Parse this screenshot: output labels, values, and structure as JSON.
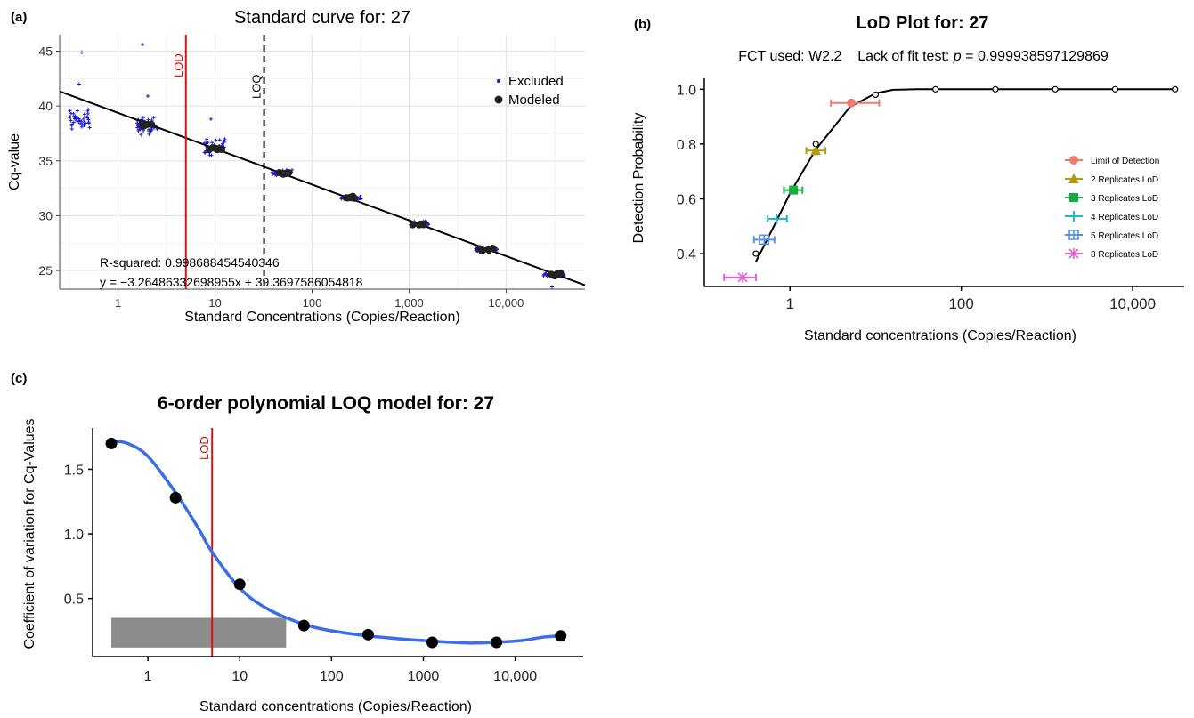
{
  "colors": {
    "excluded": "#1a1ad6",
    "modeled": "#222222",
    "lod_line": "#e01010",
    "fit_line": "#000000",
    "poly_curve": "#3a6ee8",
    "loq_bar": "#8c8c8c",
    "grid": "#e6e6e6"
  },
  "chart_data": [
    {
      "panel": "(a)",
      "type": "scatter",
      "title": "Standard curve for: 27",
      "xlabel": "Standard Concentrations (Copies/Reaction)",
      "ylabel": "Cq-value",
      "x_scale": "log10",
      "xlim": [
        0.25,
        65000
      ],
      "ylim": [
        23.3,
        46.5
      ],
      "x_ticks": [
        1,
        10,
        100,
        1000,
        10000
      ],
      "x_tick_labels": [
        "1",
        "10",
        "100",
        "1,000",
        "10,000"
      ],
      "y_ticks": [
        25,
        30,
        35,
        40,
        45
      ],
      "y_tick_labels": [
        "25",
        "30",
        "35",
        "40",
        "45"
      ],
      "grid": true,
      "legend": {
        "position": "top-right",
        "entries": [
          "Excluded",
          "Modeled"
        ]
      },
      "annotations": {
        "r_squared": "R-squared: 0.998688454540346",
        "equation": "y = −3.26486332698955x + 39.3697586054818"
      },
      "vlines": [
        {
          "label": "LOD",
          "x": 5,
          "style": "solid"
        },
        {
          "label": "LOQ",
          "x": 32,
          "style": "dashed"
        }
      ],
      "fit": {
        "slope": -3.26486332698955,
        "intercept": 39.3697586054818
      },
      "standards": [
        {
          "x": 0.4,
          "excluded_mean": 38.8,
          "excluded_spread": 1.5,
          "modeled": null,
          "outliers": [
            42.0,
            44.9
          ]
        },
        {
          "x": 2,
          "excluded_mean": 38.2,
          "excluded_spread": 1.3,
          "modeled": 38.3,
          "outliers": [
            45.6,
            40.9
          ]
        },
        {
          "x": 10,
          "excluded_mean": 36.2,
          "excluded_spread": 1.1,
          "modeled": 36.1,
          "outliers": [
            38.8
          ]
        },
        {
          "x": 50,
          "excluded_mean": 33.9,
          "excluded_spread": 0.5,
          "modeled": 33.9,
          "outliers": []
        },
        {
          "x": 250,
          "excluded_mean": 31.6,
          "excluded_spread": 0.3,
          "modeled": 31.6,
          "outliers": []
        },
        {
          "x": 1250,
          "excluded_mean": 29.3,
          "excluded_spread": 0.25,
          "modeled": 29.2,
          "outliers": []
        },
        {
          "x": 6250,
          "excluded_mean": 26.9,
          "excluded_spread": 0.25,
          "modeled": 26.9,
          "outliers": []
        },
        {
          "x": 31250,
          "excluded_mean": 24.6,
          "excluded_spread": 0.3,
          "modeled": 24.6,
          "outliers": [
            23.5
          ]
        }
      ]
    },
    {
      "panel": "(b)",
      "type": "line",
      "title": "LoD Plot for: 27",
      "subtitle_prefix": "FCT used: W2.2    Lack of fit test: ",
      "subtitle_p": "p",
      "subtitle_suffix": " = 0.999938597129869",
      "xlabel": "Standard concentrations (Copies/Reaction)",
      "ylabel": "Detection Probability",
      "x_scale": "log10",
      "xlim": [
        0.1,
        40000
      ],
      "ylim": [
        0.28,
        1.04
      ],
      "x_ticks": [
        1,
        100,
        10000
      ],
      "x_tick_labels": [
        "1",
        "100",
        "10,000"
      ],
      "y_ticks": [
        0.4,
        0.6,
        0.8,
        1.0
      ],
      "y_tick_labels": [
        "0.4",
        "0.6",
        "0.8",
        "1.0"
      ],
      "grid": false,
      "observed": [
        {
          "x": 0.4,
          "y": 0.4
        },
        {
          "x": 2,
          "y": 0.8
        },
        {
          "x": 10,
          "y": 0.98
        },
        {
          "x": 50,
          "y": 1.0
        },
        {
          "x": 250,
          "y": 1.0
        },
        {
          "x": 1250,
          "y": 1.0
        },
        {
          "x": 6250,
          "y": 1.0
        },
        {
          "x": 31250,
          "y": 1.0
        }
      ],
      "curve": [
        {
          "x": 0.2,
          "y": 0.1
        },
        {
          "x": 0.4,
          "y": 0.37
        },
        {
          "x": 0.7,
          "y": 0.52
        },
        {
          "x": 1,
          "y": 0.62
        },
        {
          "x": 2,
          "y": 0.78
        },
        {
          "x": 5,
          "y": 0.935
        },
        {
          "x": 10,
          "y": 0.985
        },
        {
          "x": 16,
          "y": 0.998
        },
        {
          "x": 30,
          "y": 1.0
        },
        {
          "x": 31250,
          "y": 1.0
        }
      ],
      "lod_estimates": [
        {
          "name": "Limit of Detection",
          "x": 5.2,
          "lo": 3.0,
          "hi": 11.0,
          "y": 0.95,
          "color": "#f07a70",
          "marker": "circle"
        },
        {
          "name": "2 Replicates LoD",
          "x": 2.0,
          "lo": 1.55,
          "hi": 2.6,
          "y": 0.776,
          "color": "#b09a10",
          "marker": "triangle"
        },
        {
          "name": "3 Replicates LoD",
          "x": 1.1,
          "lo": 0.85,
          "hi": 1.4,
          "y": 0.632,
          "color": "#12b040",
          "marker": "square"
        },
        {
          "name": "4 Replicates LoD",
          "x": 0.7,
          "lo": 0.55,
          "hi": 0.92,
          "y": 0.527,
          "color": "#20b8c8",
          "marker": "plus"
        },
        {
          "name": "5 Replicates LoD",
          "x": 0.5,
          "lo": 0.38,
          "hi": 0.66,
          "y": 0.451,
          "color": "#5a90e8",
          "marker": "boxplus"
        },
        {
          "name": "8 Replicates LoD",
          "x": 0.28,
          "lo": 0.17,
          "hi": 0.4,
          "y": 0.313,
          "color": "#e060d0",
          "marker": "star"
        }
      ],
      "legend": {
        "position": "right"
      }
    },
    {
      "panel": "(c)",
      "type": "scatter",
      "title": "6-order polynomial LOQ model for: 27",
      "xlabel": "Standard concentrations (Copies/Reaction)",
      "ylabel": "Coefficient of variation for Cq-Values",
      "x_scale": "log10",
      "xlim": [
        0.25,
        55000
      ],
      "ylim": [
        0.05,
        1.82
      ],
      "x_ticks": [
        1,
        10,
        100,
        1000,
        10000
      ],
      "x_tick_labels": [
        "1",
        "10",
        "100",
        "1000",
        "10,000"
      ],
      "y_ticks": [
        0.5,
        1.0,
        1.5
      ],
      "y_tick_labels": [
        "0.5",
        "1.0",
        "1.5"
      ],
      "grid": false,
      "vlines": [
        {
          "label": "LOD",
          "x": 5
        }
      ],
      "shaded_region": {
        "x_from": 0.4,
        "x_to": 32,
        "y_from": 0.12,
        "y_to": 0.35
      },
      "points": [
        {
          "x": 0.4,
          "y": 1.7
        },
        {
          "x": 2,
          "y": 1.28
        },
        {
          "x": 10,
          "y": 0.61
        },
        {
          "x": 50,
          "y": 0.29
        },
        {
          "x": 250,
          "y": 0.22
        },
        {
          "x": 1250,
          "y": 0.16
        },
        {
          "x": 6250,
          "y": 0.16
        },
        {
          "x": 31250,
          "y": 0.21
        }
      ],
      "curve": [
        {
          "x": 0.4,
          "y": 1.72
        },
        {
          "x": 0.6,
          "y": 1.7
        },
        {
          "x": 1,
          "y": 1.6
        },
        {
          "x": 2,
          "y": 1.32
        },
        {
          "x": 3.5,
          "y": 1.05
        },
        {
          "x": 5,
          "y": 0.86
        },
        {
          "x": 10,
          "y": 0.58
        },
        {
          "x": 20,
          "y": 0.42
        },
        {
          "x": 50,
          "y": 0.3
        },
        {
          "x": 100,
          "y": 0.25
        },
        {
          "x": 250,
          "y": 0.21
        },
        {
          "x": 600,
          "y": 0.185
        },
        {
          "x": 1250,
          "y": 0.17
        },
        {
          "x": 3000,
          "y": 0.155
        },
        {
          "x": 6250,
          "y": 0.16
        },
        {
          "x": 12000,
          "y": 0.175
        },
        {
          "x": 20000,
          "y": 0.2
        },
        {
          "x": 31250,
          "y": 0.21
        }
      ]
    }
  ]
}
